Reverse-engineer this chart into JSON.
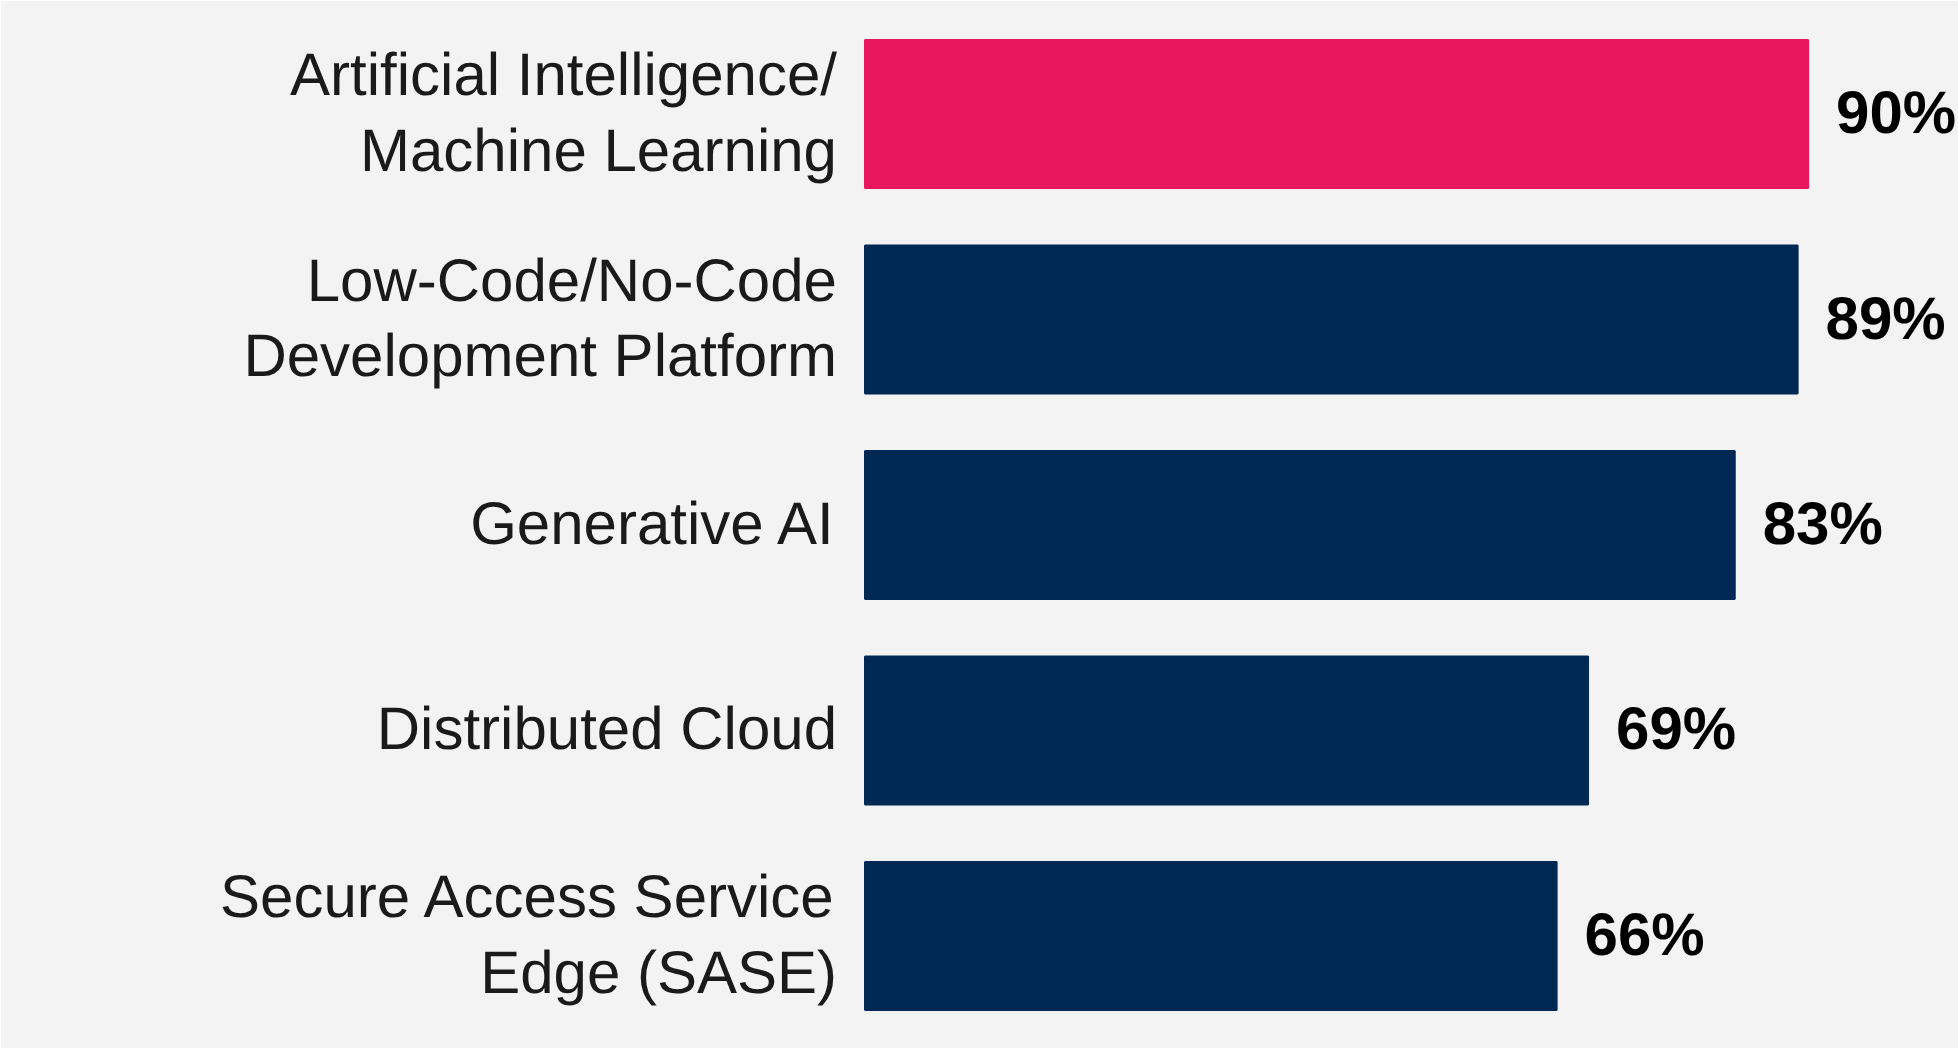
{
  "chart_data": {
    "type": "bar",
    "orientation": "horizontal",
    "categories": [
      "Artificial Intelligence/\nMachine Learning",
      "Low-Code/No-Code\nDevelopment Platform",
      "Generative AI",
      "Distributed Cloud",
      "Secure Access Service\nEdge (SASE)"
    ],
    "values": [
      90,
      89,
      83,
      69,
      66
    ],
    "colors": [
      "#e8175d",
      "#002855",
      "#002855",
      "#002855",
      "#002855"
    ],
    "value_labels": [
      "90%",
      "89%",
      "83%",
      "69%",
      "66%"
    ]
  }
}
